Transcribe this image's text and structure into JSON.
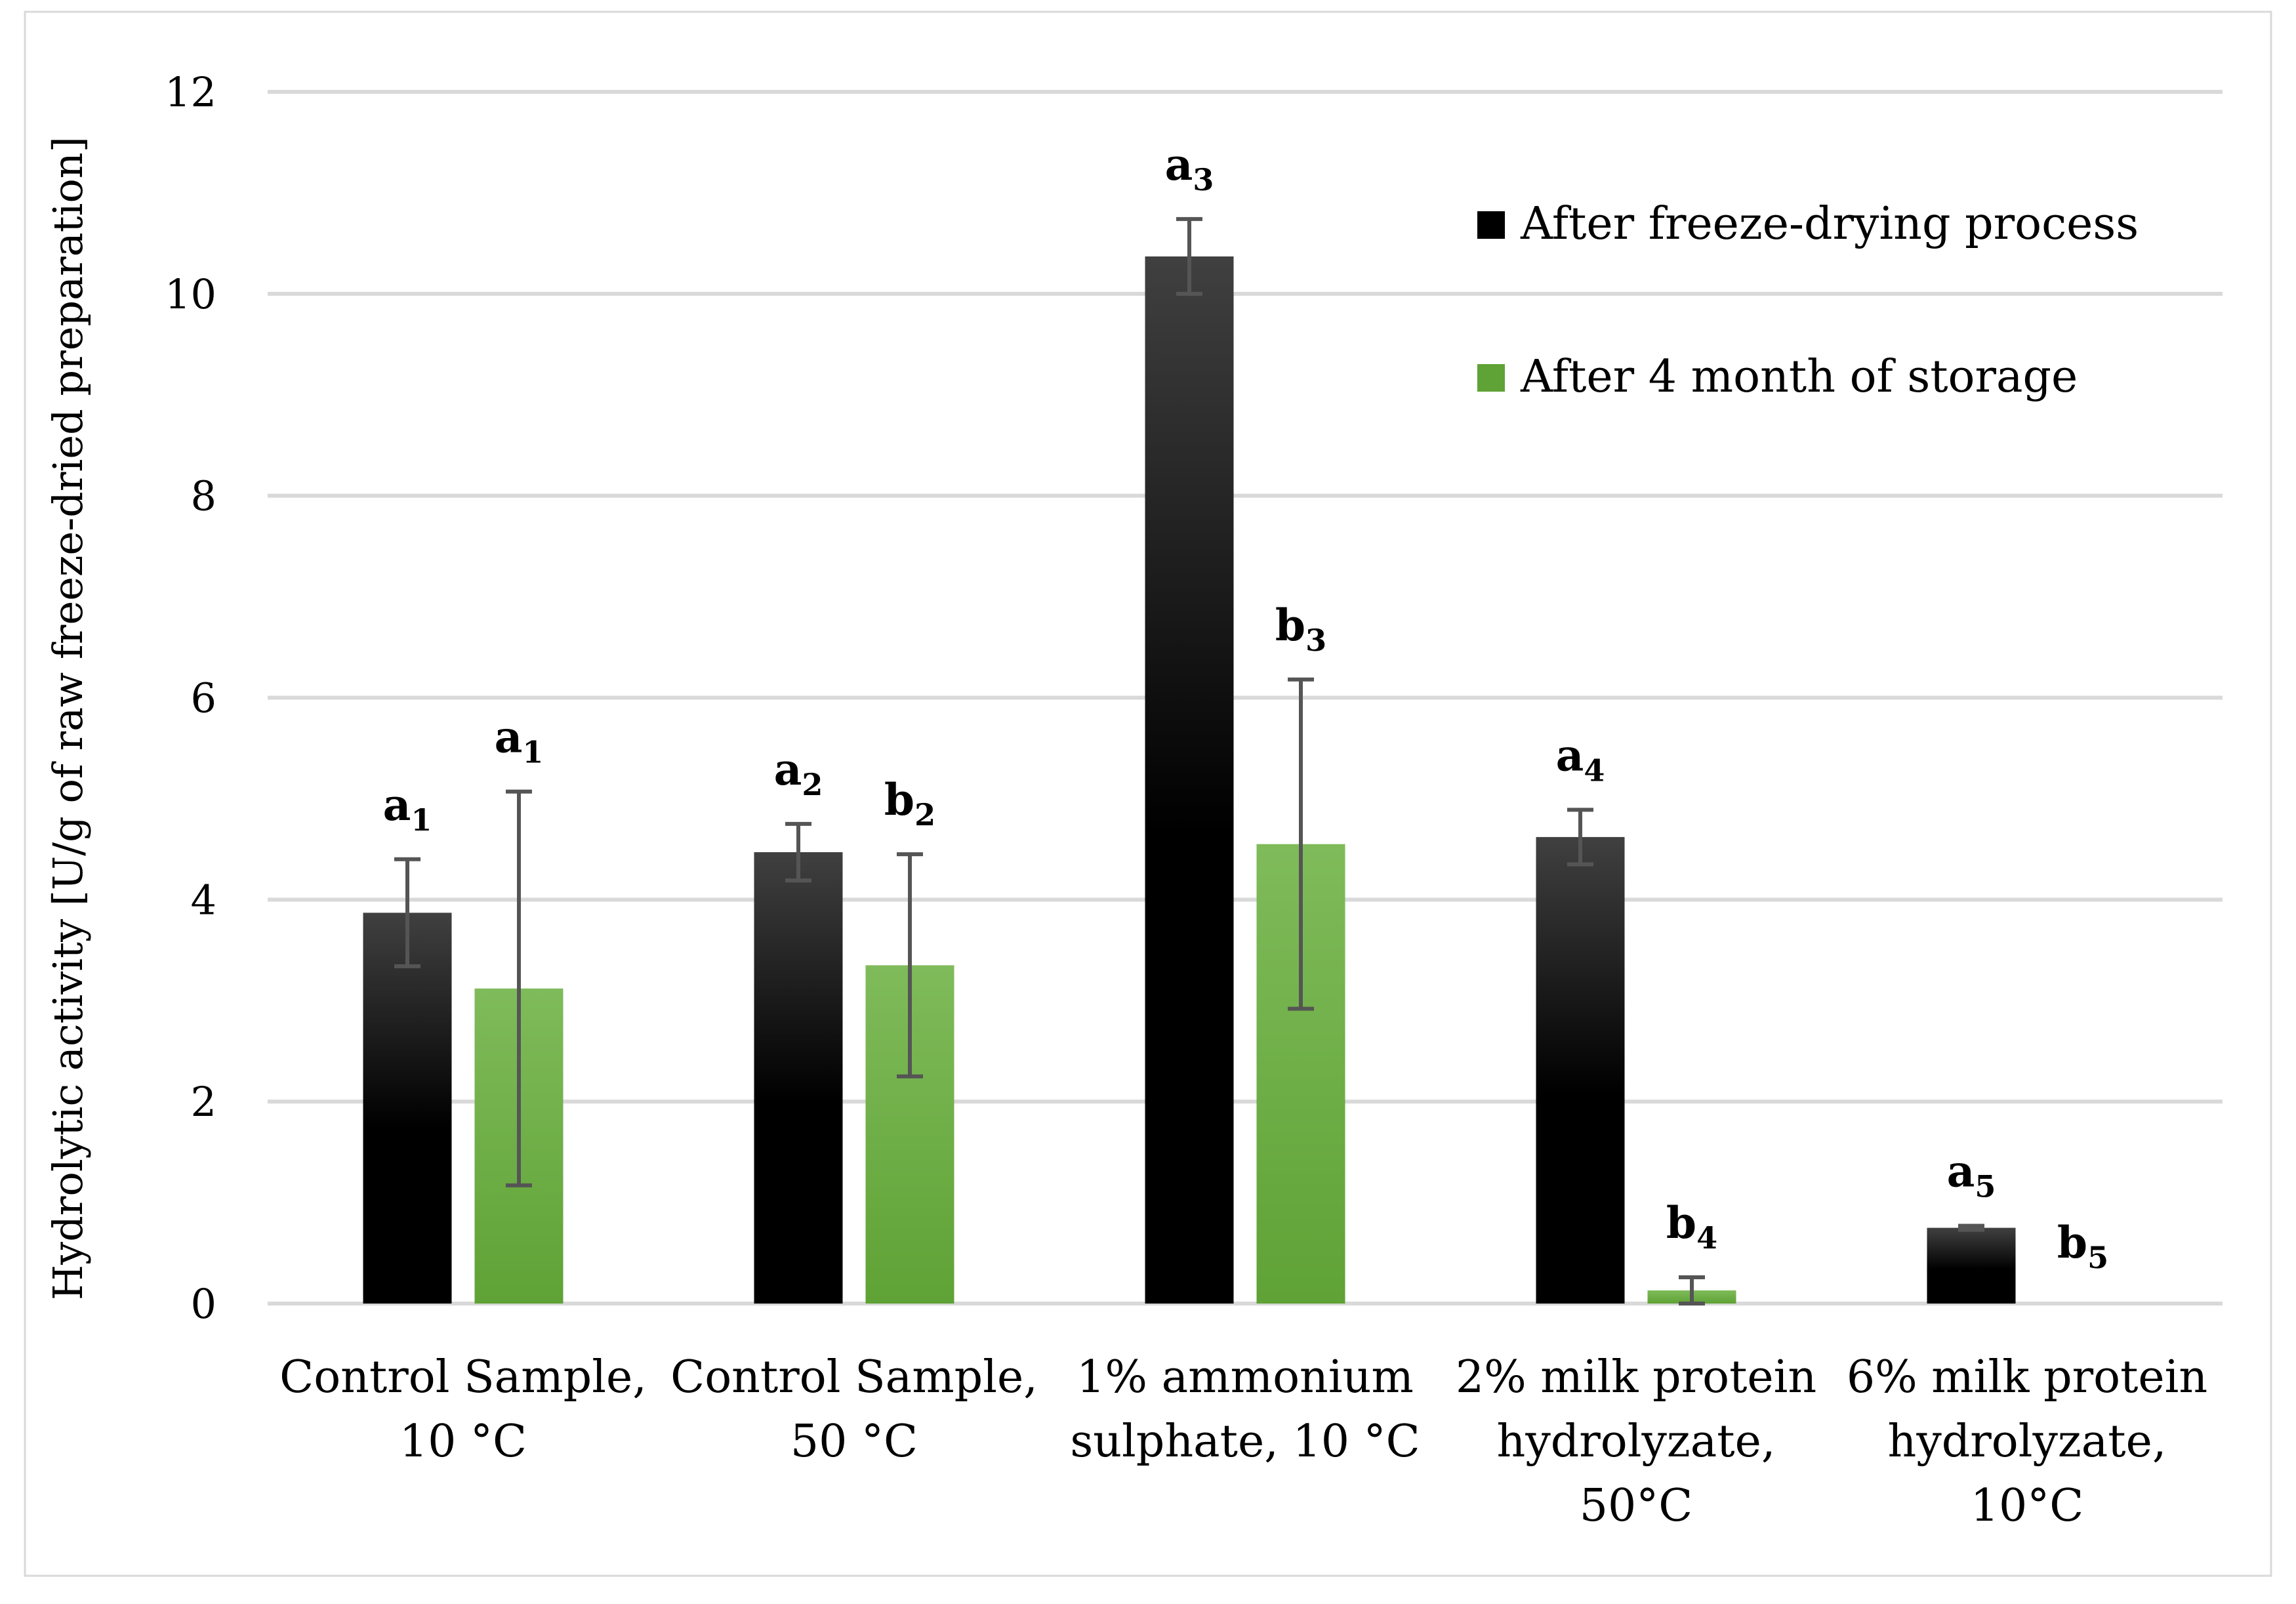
{
  "chart_data": {
    "type": "bar",
    "title": "",
    "xlabel": "",
    "ylabel": "Hydrolytic activity [U/g of raw freeze-dried preparation]",
    "ylim": [
      0,
      12
    ],
    "yticks": [
      0,
      2,
      4,
      6,
      8,
      10,
      12
    ],
    "grid": true,
    "legend_position": "top-right",
    "categories": [
      [
        "Control Sample,",
        "10 °C"
      ],
      [
        "Control Sample,",
        "50 °C"
      ],
      [
        "1% ammonium",
        "sulphate, 10 °C"
      ],
      [
        "2% milk protein",
        "hydrolyzate,",
        "50°C"
      ],
      [
        "6% milk protein",
        "hydrolyzate,",
        "10°C"
      ]
    ],
    "series": [
      {
        "name": "After freeze-drying process",
        "color": "#000000",
        "color_top": "#404040",
        "values": [
          3.87,
          4.47,
          10.37,
          4.62,
          0.75
        ],
        "errors": [
          0.53,
          0.28,
          0.37,
          0.27,
          0.02
        ],
        "labels": [
          [
            "a",
            "1"
          ],
          [
            "a",
            "2"
          ],
          [
            "a",
            "3"
          ],
          [
            "a",
            "4"
          ],
          [
            "a",
            "5"
          ]
        ]
      },
      {
        "name": "After 4 month of storage",
        "color": "#5fa235",
        "color_top": "#7fbb5a",
        "values": [
          3.12,
          3.35,
          4.55,
          0.13,
          0.0
        ],
        "errors": [
          1.95,
          1.1,
          1.63,
          0.13,
          0.0
        ],
        "labels": [
          [
            "a",
            "1"
          ],
          [
            "b",
            "2"
          ],
          [
            "b",
            "3"
          ],
          [
            "b",
            "4"
          ],
          [
            "b",
            "5"
          ]
        ]
      }
    ]
  }
}
